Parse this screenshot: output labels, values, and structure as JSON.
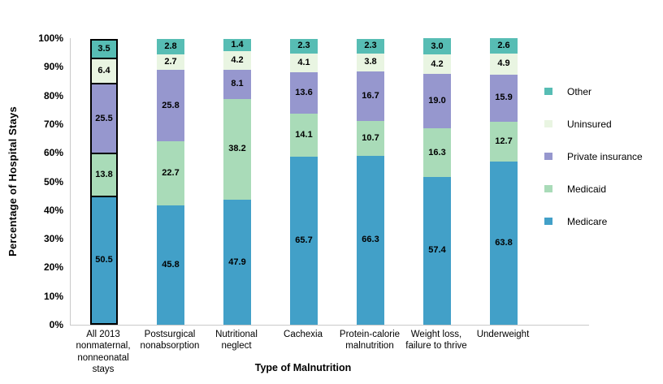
{
  "chart_data": {
    "type": "bar",
    "stacked": true,
    "xlabel": "Type of Malnutrition",
    "ylabel": "Percentage of Hospital Stays",
    "ylim": [
      0,
      100
    ],
    "y_tick_step": 10,
    "y_tick_suffix": "%",
    "grid": false,
    "legend_position": "right",
    "categories": [
      "All 2013 nonmaternal, nonneonatal stays",
      "Postsurgical nonabsorption",
      "Nutritional neglect",
      "Cachexia",
      "Protein-calorie malnutrition",
      "Weight loss, failure to thrive",
      "Underweight"
    ],
    "series": [
      {
        "name": "Medicare",
        "color": "#42A0C8",
        "values": [
          50.5,
          45.8,
          47.9,
          65.7,
          66.3,
          57.4,
          63.8
        ]
      },
      {
        "name": "Medicaid",
        "color": "#A9DBB8",
        "values": [
          13.8,
          22.7,
          38.2,
          14.1,
          10.7,
          16.3,
          12.7
        ]
      },
      {
        "name": "Private insurance",
        "color": "#9697CE",
        "values": [
          25.5,
          25.8,
          8.1,
          13.6,
          16.7,
          19.0,
          15.9
        ]
      },
      {
        "name": "Uninsured",
        "color": "#E9F5E2",
        "values": [
          6.4,
          2.7,
          4.2,
          4.1,
          3.8,
          4.2,
          4.9
        ]
      },
      {
        "name": "Other",
        "color": "#57BDB4",
        "values": [
          3.5,
          2.8,
          1.4,
          2.3,
          2.3,
          3.0,
          2.6
        ]
      }
    ],
    "legend_order": [
      "Other",
      "Uninsured",
      "Private insurance",
      "Medicaid",
      "Medicare"
    ],
    "highlighted_category_index": 0,
    "highlight_border_color": "#000000",
    "axis_line_color": "#C9C9C9",
    "value_label_decimals": 1
  }
}
